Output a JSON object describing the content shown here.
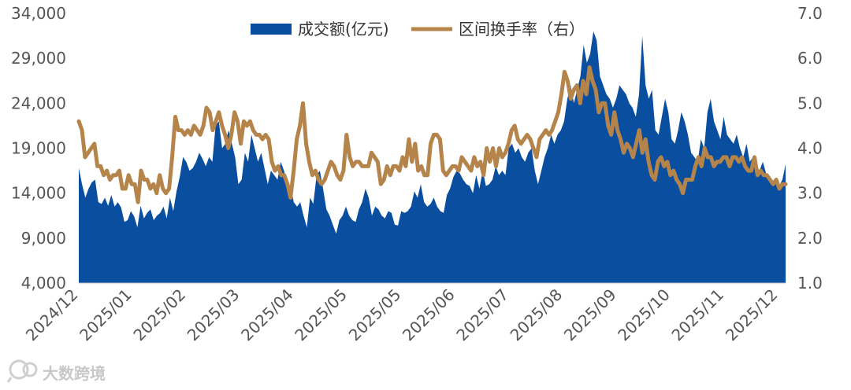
{
  "watermark": {
    "text": "大数跨境",
    "icon": "logo-mark"
  },
  "chart_data": {
    "type": "area+line",
    "y_left": {
      "ticks": [
        "34,000",
        "29,000",
        "24,000",
        "19,000",
        "14,000",
        "9,000",
        "4,000"
      ],
      "ylim": [
        4000,
        34000
      ]
    },
    "y_right": {
      "ticks": [
        "7.0",
        "6.0",
        "5.0",
        "4.0",
        "3.0",
        "2.0",
        "1.0"
      ],
      "ylim": [
        1.0,
        7.0
      ]
    },
    "x_ticks": [
      "2024/12",
      "2025/01",
      "2025/02",
      "2025/03",
      "2025/04",
      "2025/05",
      "2025/05",
      "2025/06",
      "2025/07",
      "2025/08",
      "2025/09",
      "2025/10",
      "2025/11",
      "2025/12"
    ],
    "legend_position": "top-center",
    "series": [
      {
        "name": "成交额(亿元)",
        "kind": "area",
        "axis": "left",
        "color": "#0a4ea0",
        "values": [
          16800,
          15000,
          13500,
          14500,
          15200,
          15500,
          13000,
          12800,
          13500,
          12600,
          13800,
          12500,
          13000,
          12400,
          10800,
          11000,
          12000,
          11400,
          10200,
          12600,
          11200,
          11800,
          12200,
          11000,
          11500,
          11800,
          12500,
          11200,
          13500,
          12000,
          14200,
          15800,
          18000,
          17500,
          16500,
          16800,
          17500,
          18500,
          17800,
          17000,
          18000,
          17500,
          21500,
          22000,
          19000,
          19500,
          21000,
          19500,
          18000,
          15000,
          15500,
          18500,
          17500,
          20500,
          19000,
          17500,
          18500,
          16800,
          15000,
          16500,
          16000,
          15500,
          17500,
          16500,
          15000,
          14800,
          13000,
          12500,
          13000,
          11500,
          10200,
          13500,
          12800,
          16000,
          16500,
          14500,
          12200,
          11500,
          10500,
          9500,
          11000,
          11500,
          12500,
          11500,
          11000,
          10800,
          12200,
          13000,
          14500,
          13500,
          11500,
          12500,
          12200,
          11500,
          11200,
          12000,
          11800,
          10500,
          10400,
          12000,
          11800,
          12000,
          12500,
          14200,
          13500,
          15000,
          13000,
          12500,
          12800,
          13500,
          12500,
          12000,
          11800,
          13800,
          14500,
          15800,
          16500,
          16200,
          15500,
          15000,
          14800,
          14000,
          16000,
          14500,
          16500,
          14800,
          15000,
          15500,
          17000,
          16000,
          16500,
          16000,
          19000,
          19500,
          18500,
          19000,
          18000,
          17500,
          18500,
          19000,
          16500,
          15000,
          16500,
          18000,
          19000,
          20500,
          19500,
          20500,
          21000,
          22000,
          24500,
          26000,
          24000,
          25500,
          27000,
          30500,
          28500,
          29500,
          32000,
          31000,
          27000,
          26000,
          25000,
          24500,
          23500,
          24500,
          26000,
          25500,
          25000,
          24000,
          23500,
          22500,
          25000,
          31500,
          26000,
          24500,
          25500,
          21000,
          20500,
          22500,
          24500,
          23000,
          20000,
          19500,
          21000,
          23000,
          22000,
          20500,
          18500,
          18000,
          17500,
          20000,
          19000,
          23000,
          24500,
          22000,
          21000,
          20000,
          22500,
          20500,
          20000,
          19500,
          20500,
          19000,
          18000,
          19500,
          17500,
          18000,
          17000,
          16500,
          17500,
          16200,
          15500,
          15000,
          15200,
          14800,
          15500,
          17200
        ],
        "note": "values in 亿元 (approx.)"
      },
      {
        "name": "区间换手率（右）",
        "kind": "line",
        "axis": "right",
        "color": "#b5844a",
        "values": [
          4.6,
          4.4,
          3.8,
          3.9,
          4.0,
          4.1,
          3.6,
          3.6,
          3.4,
          3.5,
          3.3,
          3.4,
          3.4,
          3.5,
          3.1,
          3.1,
          3.4,
          3.2,
          3.2,
          2.8,
          3.5,
          3.3,
          3.3,
          3.1,
          3.2,
          3.0,
          3.4,
          3.1,
          3.0,
          3.1,
          3.8,
          4.7,
          4.4,
          4.4,
          4.3,
          4.4,
          4.3,
          4.5,
          4.4,
          4.3,
          4.5,
          4.9,
          4.8,
          4.4,
          4.6,
          4.8,
          4.5,
          4.3,
          4.0,
          4.3,
          4.8,
          4.6,
          4.1,
          4.6,
          4.5,
          4.6,
          4.4,
          4.3,
          4.3,
          4.2,
          4.3,
          4.2,
          3.7,
          3.5,
          3.6,
          3.4,
          3.4,
          3.2,
          2.9,
          3.5,
          4.2,
          4.5,
          5.0,
          4.1,
          3.7,
          3.4,
          3.5,
          3.3,
          3.2,
          3.3,
          3.5,
          3.7,
          3.6,
          3.4,
          3.3,
          3.5,
          4.3,
          3.8,
          3.6,
          3.7,
          3.7,
          3.6,
          3.6,
          3.6,
          3.9,
          3.8,
          3.7,
          3.2,
          3.3,
          3.6,
          3.4,
          3.6,
          3.6,
          3.5,
          3.8,
          3.6,
          4.2,
          3.7,
          4.1,
          3.5,
          3.6,
          3.4,
          3.4,
          4.1,
          4.3,
          4.3,
          4.2,
          3.5,
          3.4,
          3.5,
          3.6,
          3.6,
          3.5,
          3.8,
          3.7,
          3.6,
          3.5,
          3.8,
          3.6,
          3.7,
          3.4,
          4.0,
          3.7,
          4.0,
          3.6,
          4.0,
          3.8,
          3.9,
          4.1,
          4.4,
          4.5,
          4.2,
          4.1,
          4.2,
          4.3,
          4.2,
          4.0,
          3.8,
          4.2,
          4.3,
          4.4,
          4.3,
          4.4,
          4.6,
          4.8,
          5.2,
          5.7,
          5.5,
          5.1,
          5.3,
          5.4,
          5.0,
          5.5,
          5.2,
          5.8,
          5.5,
          5.3,
          4.8,
          5.0,
          5.0,
          4.5,
          4.3,
          4.8,
          4.4,
          4.2,
          3.9,
          4.1,
          4.0,
          3.8,
          4.1,
          4.4,
          3.9,
          4.2,
          3.7,
          3.4,
          3.3,
          3.7,
          3.8,
          3.6,
          3.7,
          3.4,
          3.5,
          3.3,
          3.2,
          3.0,
          3.3,
          3.3,
          3.3,
          3.6,
          3.8,
          3.6,
          4.0,
          3.8,
          3.8,
          3.6,
          3.7,
          3.7,
          3.8,
          3.8,
          3.6,
          3.8,
          3.8,
          3.7,
          3.8,
          3.6,
          3.5,
          3.5,
          3.8,
          3.4,
          3.5,
          3.4,
          3.4,
          3.3,
          3.2,
          3.3,
          3.1,
          3.2,
          3.2
        ]
      }
    ]
  }
}
